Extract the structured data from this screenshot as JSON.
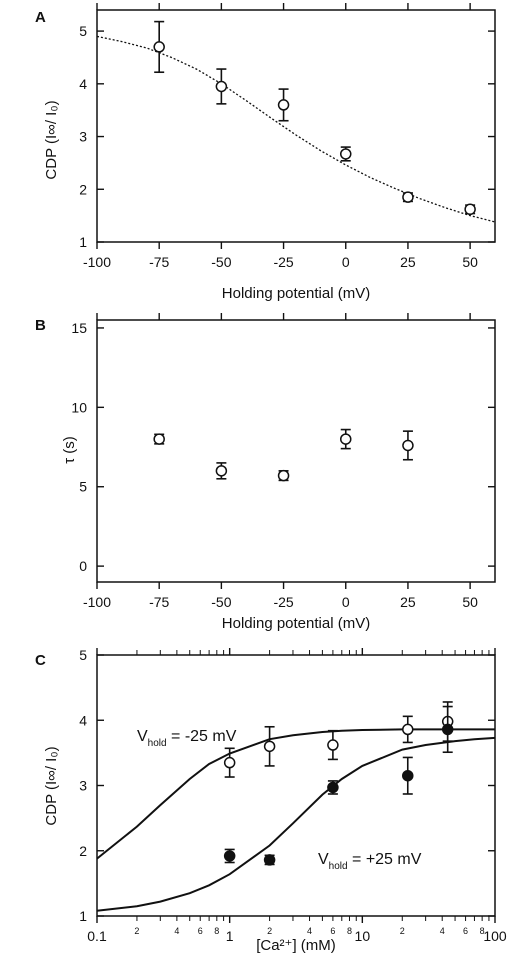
{
  "chart_data": [
    {
      "panel": "A",
      "type": "scatter",
      "xlabel": "Holding potential (mV)",
      "ylabel": "CDP (I∞/ I₀)",
      "xlim": [
        -100,
        60
      ],
      "ylim": [
        1,
        5.4
      ],
      "xticks": [
        -100,
        -75,
        -50,
        -25,
        0,
        25,
        50
      ],
      "yticks": [
        1,
        2,
        3,
        4,
        5
      ],
      "grid": false,
      "series": [
        {
          "marker": "open-circle",
          "x": [
            -75,
            -50,
            -25,
            0,
            25,
            50
          ],
          "y": [
            4.7,
            3.95,
            3.6,
            2.67,
            1.85,
            1.62
          ],
          "yerr": [
            0.48,
            0.33,
            0.3,
            0.13,
            0.08,
            0.08
          ]
        }
      ],
      "fit": {
        "style": "dotted",
        "x": [
          -100,
          -90,
          -80,
          -70,
          -60,
          -50,
          -40,
          -30,
          -20,
          -10,
          0,
          10,
          20,
          30,
          40,
          50,
          60
        ],
        "y": [
          4.9,
          4.8,
          4.68,
          4.5,
          4.28,
          4.0,
          3.68,
          3.35,
          3.03,
          2.73,
          2.46,
          2.22,
          2.01,
          1.82,
          1.65,
          1.5,
          1.38
        ]
      }
    },
    {
      "panel": "B",
      "type": "scatter",
      "xlabel": "Holding potential (mV)",
      "ylabel": "τ (s)",
      "xlim": [
        -100,
        60
      ],
      "ylim": [
        -1,
        15.5
      ],
      "xticks": [
        -100,
        -75,
        -50,
        -25,
        0,
        25,
        50
      ],
      "yticks": [
        0,
        5,
        10,
        15
      ],
      "grid": false,
      "series": [
        {
          "marker": "open-circle",
          "x": [
            -75,
            -50,
            -25,
            0,
            25
          ],
          "y": [
            8.0,
            6.0,
            5.7,
            8.0,
            7.6
          ],
          "yerr": [
            0.3,
            0.5,
            0.3,
            0.6,
            0.9
          ]
        }
      ]
    },
    {
      "panel": "C",
      "type": "scatter",
      "xlabel": "[Ca²⁺] (mM)",
      "ylabel": "CDP (I∞/ I₀)",
      "xscale": "log",
      "xlim": [
        0.1,
        100
      ],
      "ylim": [
        1,
        5
      ],
      "xticks": [
        0.1,
        1,
        10,
        100
      ],
      "xticklabels": [
        "0.1",
        "1",
        "10",
        "100"
      ],
      "minor_tick_labels": [
        "2",
        "4",
        "6",
        "8",
        "2",
        "4",
        "6",
        "8",
        "2",
        "4",
        "6",
        "8"
      ],
      "yticks": [
        1,
        2,
        3,
        4,
        5
      ],
      "grid": false,
      "series": [
        {
          "name": "Vhold = -25 mV",
          "marker": "open-circle",
          "x": [
            1,
            2,
            6,
            22,
            44
          ],
          "y": [
            3.35,
            3.6,
            3.62,
            3.86,
            3.98
          ],
          "yerr": [
            0.22,
            0.3,
            0.22,
            0.2,
            0.3
          ]
        },
        {
          "name": "Vhold = +25 mV",
          "marker": "filled-circle",
          "x": [
            1,
            2,
            6,
            22,
            44
          ],
          "y": [
            1.92,
            1.86,
            2.97,
            3.15,
            3.86
          ],
          "yerr": [
            0.1,
            0.07,
            0.1,
            0.28,
            0.35
          ]
        }
      ],
      "fits": [
        {
          "style": "solid",
          "x": [
            0.1,
            0.2,
            0.3,
            0.5,
            0.7,
            1,
            2,
            3,
            5,
            7,
            10,
            20,
            30,
            50,
            70,
            100
          ],
          "y": [
            1.88,
            2.37,
            2.7,
            3.1,
            3.33,
            3.49,
            3.71,
            3.77,
            3.82,
            3.84,
            3.85,
            3.86,
            3.86,
            3.86,
            3.86,
            3.86
          ]
        },
        {
          "style": "solid",
          "x": [
            0.1,
            0.2,
            0.3,
            0.5,
            0.7,
            1,
            2,
            3,
            5,
            7,
            10,
            20,
            30,
            50,
            70,
            100
          ],
          "y": [
            1.08,
            1.15,
            1.22,
            1.35,
            1.47,
            1.64,
            2.08,
            2.42,
            2.86,
            3.1,
            3.3,
            3.55,
            3.62,
            3.68,
            3.71,
            3.73
          ]
        }
      ],
      "annotations": {
        "upper": {
          "prefix": "V",
          "sub": "hold",
          "suffix": " = -25 mV"
        },
        "lower": {
          "prefix": "V",
          "sub": "hold",
          "suffix": " = +25 mV"
        }
      }
    }
  ]
}
